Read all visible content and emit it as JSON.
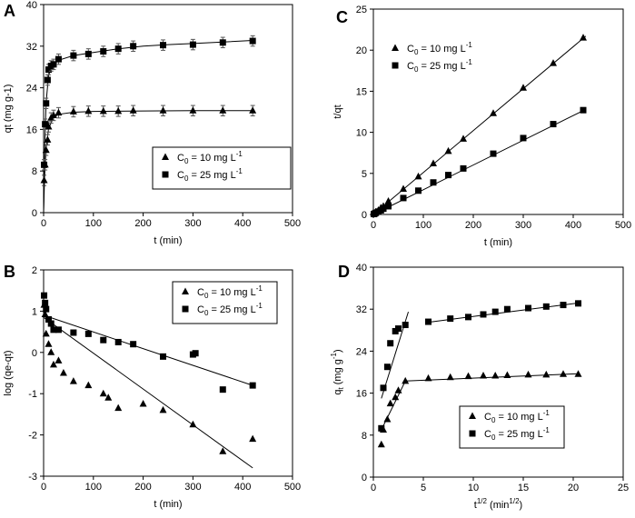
{
  "chart_data": [
    {
      "panel": "A",
      "type": "scatter",
      "xlabel": "t (min)",
      "ylabel": "qt (mg g-1)",
      "xlim": [
        0,
        500
      ],
      "ylim": [
        0,
        40
      ],
      "xticks": [
        0,
        100,
        200,
        300,
        400,
        500
      ],
      "yticks": [
        0,
        8,
        16,
        24,
        32,
        40
      ],
      "legend": {
        "position": "bottom-right",
        "boxed": true
      },
      "series": [
        {
          "name_main": "C",
          "name_sub": "0",
          "name_mid": " = 10 mg L",
          "name_sup": "-1",
          "marker": "triangle",
          "error_bars": true,
          "x": [
            1,
            3,
            5,
            8,
            10,
            15,
            20,
            30,
            60,
            90,
            120,
            150,
            180,
            240,
            300,
            360,
            420
          ],
          "y": [
            6.2,
            9.2,
            12,
            14,
            16.5,
            18.2,
            18.7,
            19.2,
            19.4,
            19.5,
            19.5,
            19.5,
            19.6,
            19.6,
            19.6,
            19.6,
            19.6
          ],
          "fit_x": [
            0,
            2,
            5,
            10,
            20,
            30,
            60,
            100,
            200,
            300,
            420
          ],
          "fit_y": [
            0,
            7,
            12.2,
            16.2,
            18.3,
            18.9,
            19.3,
            19.45,
            19.55,
            19.6,
            19.6
          ]
        },
        {
          "name_main": "C",
          "name_sub": "0",
          "name_mid": " = 25 mg L",
          "name_sup": "-1",
          "marker": "square",
          "error_bars": true,
          "x": [
            1,
            3,
            5,
            8,
            10,
            15,
            20,
            30,
            60,
            90,
            120,
            150,
            180,
            240,
            300,
            360,
            420
          ],
          "y": [
            9.2,
            17,
            21,
            25.5,
            27.5,
            28.2,
            28.5,
            29.5,
            30.2,
            30.5,
            31,
            31.5,
            32,
            32.2,
            32.3,
            32.7,
            33
          ],
          "fit_x": [
            0,
            2,
            5,
            10,
            20,
            30,
            60,
            100,
            150,
            200,
            250,
            300,
            360,
            420
          ],
          "fit_y": [
            0,
            12,
            21,
            26.5,
            28.5,
            29.3,
            30.2,
            30.8,
            31.5,
            32,
            32.3,
            32.5,
            32.8,
            33.1
          ]
        }
      ]
    },
    {
      "panel": "B",
      "type": "scatter",
      "xlabel": "t (min)",
      "ylabel": "log (qe-qt)",
      "xlim": [
        0,
        500
      ],
      "ylim": [
        -3,
        2
      ],
      "xticks": [
        0,
        100,
        200,
        300,
        400,
        500
      ],
      "yticks": [
        -3,
        -2,
        -1,
        0,
        1,
        2
      ],
      "legend": {
        "position": "top-right",
        "boxed": true
      },
      "series": [
        {
          "name_main": "C",
          "name_sub": "0",
          "name_mid": " = 10 mg L",
          "name_sup": "-1",
          "marker": "triangle",
          "x": [
            1,
            3,
            5,
            10,
            15,
            20,
            30,
            40,
            60,
            90,
            120,
            130,
            150,
            200,
            240,
            300,
            360,
            420
          ],
          "y": [
            1.15,
            0.92,
            0.45,
            0.2,
            0,
            -0.3,
            -0.2,
            -0.5,
            -0.7,
            -0.8,
            -1.0,
            -1.1,
            -1.35,
            -1.25,
            -1.4,
            -1.75,
            -2.4,
            -2.1
          ],
          "fit_x": [
            0,
            420
          ],
          "fit_y": [
            0.85,
            -2.8
          ]
        },
        {
          "name_main": "C",
          "name_sub": "0",
          "name_mid": " = 25 mg L",
          "name_sup": "-1",
          "marker": "square",
          "x": [
            1,
            3,
            5,
            10,
            15,
            20,
            30,
            60,
            90,
            120,
            150,
            180,
            240,
            300,
            305,
            360,
            420
          ],
          "y": [
            1.38,
            1.2,
            1.05,
            0.8,
            0.7,
            0.55,
            0.55,
            0.48,
            0.45,
            0.3,
            0.25,
            0.2,
            -0.1,
            -0.05,
            -0.02,
            -0.9,
            -0.8
          ],
          "fit_x": [
            0,
            420
          ],
          "fit_y": [
            0.9,
            -0.8
          ]
        }
      ]
    },
    {
      "panel": "C",
      "type": "scatter",
      "xlabel": "t (min)",
      "ylabel": "t/qt",
      "xlim": [
        0,
        500
      ],
      "ylim": [
        0,
        25
      ],
      "xticks": [
        0,
        100,
        200,
        300,
        400,
        500
      ],
      "yticks": [
        0,
        5,
        10,
        15,
        20,
        25
      ],
      "legend": {
        "position": "top-left",
        "boxed": false
      },
      "series": [
        {
          "name_main": "C",
          "name_sub": "0",
          "name_mid": " = 10 mg L",
          "name_sup": "-1",
          "marker": "triangle",
          "x": [
            1,
            3,
            5,
            10,
            15,
            20,
            30,
            60,
            90,
            120,
            150,
            180,
            240,
            300,
            360,
            420
          ],
          "y": [
            0.1,
            0.2,
            0.3,
            0.5,
            0.8,
            1.0,
            1.6,
            3.1,
            4.6,
            6.2,
            7.7,
            9.2,
            12.3,
            15.4,
            18.4,
            21.5
          ],
          "fit_x": [
            0,
            425
          ],
          "fit_y": [
            0,
            21.7
          ]
        },
        {
          "name_main": "C",
          "name_sub": "0",
          "name_mid": " = 25 mg L",
          "name_sup": "-1",
          "marker": "square",
          "x": [
            1,
            3,
            5,
            10,
            15,
            20,
            30,
            60,
            90,
            120,
            150,
            180,
            240,
            300,
            360,
            420
          ],
          "y": [
            0.05,
            0.12,
            0.2,
            0.35,
            0.5,
            0.7,
            1.0,
            2.0,
            2.9,
            3.9,
            4.8,
            5.6,
            7.4,
            9.3,
            11.0,
            12.7
          ],
          "fit_x": [
            0,
            425
          ],
          "fit_y": [
            0,
            12.8
          ]
        }
      ]
    },
    {
      "panel": "D",
      "type": "scatter",
      "xlabel_main": "t",
      "xlabel_sup": "1/2",
      "xlabel_mid": " (min",
      "xlabel_sup2": "1/2",
      "xlabel_end": ")",
      "ylabel_main": "q",
      "ylabel_sub": "t",
      "ylabel_mid": " (mg g",
      "ylabel_sup": "-1",
      "ylabel_end": ")",
      "xlim": [
        0,
        25
      ],
      "ylim": [
        0,
        40
      ],
      "xticks": [
        0,
        5,
        10,
        15,
        20,
        25
      ],
      "yticks": [
        0,
        8,
        16,
        24,
        32,
        40
      ],
      "legend": {
        "position": "bottom-right",
        "boxed": true
      },
      "series": [
        {
          "name_main": "C",
          "name_sub": "0",
          "name_mid": " = 10 mg L",
          "name_sup": "-1",
          "marker": "triangle",
          "x": [
            0.8,
            1.0,
            1.4,
            1.7,
            2.2,
            2.5,
            3.2,
            5.5,
            7.7,
            9.5,
            11.0,
            12.2,
            13.4,
            15.5,
            17.3,
            19.0,
            20.5
          ],
          "y": [
            6.2,
            9.0,
            11.0,
            14.0,
            15.2,
            16.5,
            18.3,
            18.8,
            19.0,
            19.2,
            19.3,
            19.3,
            19.4,
            19.5,
            19.5,
            19.6,
            19.6
          ],
          "fit_segments": [
            {
              "x": [
                0.8,
                3.2
              ],
              "y": [
                9.0,
                18.3
              ]
            },
            {
              "x": [
                3.2,
                20.6
              ],
              "y": [
                18.3,
                19.7
              ]
            }
          ]
        },
        {
          "name_main": "C",
          "name_sub": "0",
          "name_mid": " = 25 mg L",
          "name_sup": "-1",
          "marker": "square",
          "x": [
            0.8,
            1.0,
            1.4,
            1.7,
            2.2,
            2.5,
            3.2,
            5.5,
            7.7,
            9.5,
            11.0,
            12.2,
            13.4,
            15.5,
            17.3,
            19.0,
            20.5
          ],
          "y": [
            9.3,
            17.0,
            21.0,
            25.5,
            27.8,
            28.3,
            29.0,
            29.6,
            30.2,
            30.5,
            31.0,
            31.5,
            32.0,
            32.2,
            32.5,
            32.8,
            33.1
          ],
          "fit_segments": [
            {
              "x": [
                0.8,
                3.5
              ],
              "y": [
                15.0,
                31.5
              ]
            },
            {
              "x": [
                5.5,
                20.6
              ],
              "y": [
                29.5,
                33.2
              ]
            }
          ]
        }
      ]
    }
  ],
  "panel_letters": [
    "A",
    "B",
    "C",
    "D"
  ]
}
